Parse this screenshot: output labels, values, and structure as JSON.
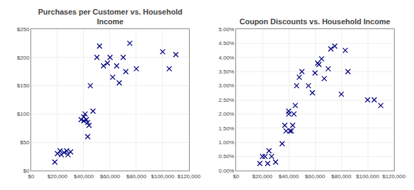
{
  "chart_data": [
    {
      "type": "scatter",
      "title": "Purchases per Customer vs. Household\nIncome",
      "x": [
        18000,
        20000,
        22000,
        23000,
        25000,
        27000,
        28000,
        30000,
        38000,
        40000,
        40000,
        41000,
        42000,
        43000,
        43000,
        44000,
        45000,
        47000,
        50000,
        52000,
        55000,
        58000,
        60000,
        62000,
        65000,
        67000,
        70000,
        72000,
        75000,
        80000,
        100000,
        105000,
        110000
      ],
      "values": [
        15,
        30,
        35,
        28,
        32,
        35,
        28,
        33,
        90,
        88,
        95,
        100,
        90,
        85,
        60,
        80,
        150,
        105,
        200,
        220,
        185,
        190,
        200,
        165,
        185,
        155,
        200,
        175,
        225,
        180,
        210,
        180,
        205
      ],
      "xlim": [
        0,
        120000
      ],
      "ylim": [
        0,
        250
      ],
      "xticks": [
        {
          "value": 0,
          "label": "$0"
        },
        {
          "value": 20000,
          "label": "$20,000"
        },
        {
          "value": 40000,
          "label": "$40,000"
        },
        {
          "value": 60000,
          "label": "$60,000"
        },
        {
          "value": 80000,
          "label": "$80,000"
        },
        {
          "value": 100000,
          "label": "$100,000"
        },
        {
          "value": 120000,
          "label": "$120,000"
        }
      ],
      "yticks": [
        {
          "value": 0,
          "label": "$0"
        },
        {
          "value": 50,
          "label": "$50"
        },
        {
          "value": 100,
          "label": "$100"
        },
        {
          "value": 150,
          "label": "$150"
        },
        {
          "value": 200,
          "label": "$200"
        },
        {
          "value": 250,
          "label": "$250"
        }
      ],
      "color": "#000080",
      "marker": "x",
      "grid": true
    },
    {
      "type": "scatter",
      "title": "Coupon Discounts vs. Household Income",
      "x": [
        18000,
        20000,
        22000,
        24000,
        25000,
        27000,
        30000,
        35000,
        37000,
        38000,
        40000,
        40000,
        41000,
        42000,
        43000,
        44000,
        45000,
        46000,
        48000,
        50000,
        55000,
        58000,
        60000,
        62000,
        63000,
        65000,
        67000,
        70000,
        72000,
        75000,
        80000,
        83000,
        85000,
        100000,
        105000,
        110000
      ],
      "values": [
        0.0025,
        0.005,
        0.005,
        0.0025,
        0.007,
        0.005,
        0.003,
        0.0095,
        0.016,
        0.014,
        0.02,
        0.021,
        0.014,
        0.014,
        0.016,
        0.02,
        0.023,
        0.03,
        0.033,
        0.035,
        0.03,
        0.0275,
        0.0345,
        0.038,
        0.0375,
        0.0395,
        0.0325,
        0.036,
        0.043,
        0.044,
        0.027,
        0.0425,
        0.035,
        0.025,
        0.025,
        0.023
      ],
      "xlim": [
        0,
        120000
      ],
      "ylim": [
        0,
        0.05
      ],
      "xticks": [
        {
          "value": 0,
          "label": "$0"
        },
        {
          "value": 20000,
          "label": "$20,000"
        },
        {
          "value": 40000,
          "label": "$40,000"
        },
        {
          "value": 60000,
          "label": "$60,000"
        },
        {
          "value": 80000,
          "label": "$80,000"
        },
        {
          "value": 100000,
          "label": "$100,000"
        },
        {
          "value": 120000,
          "label": "$120,000"
        }
      ],
      "yticks": [
        {
          "value": 0.0,
          "label": "0.00%"
        },
        {
          "value": 0.005,
          "label": "0.50%"
        },
        {
          "value": 0.01,
          "label": "1.00%"
        },
        {
          "value": 0.015,
          "label": "1.50%"
        },
        {
          "value": 0.02,
          "label": "2.00%"
        },
        {
          "value": 0.025,
          "label": "2.50%"
        },
        {
          "value": 0.03,
          "label": "3.00%"
        },
        {
          "value": 0.035,
          "label": "3.50%"
        },
        {
          "value": 0.04,
          "label": "4.00%"
        },
        {
          "value": 0.045,
          "label": "4.50%"
        },
        {
          "value": 0.05,
          "label": "5.00%"
        }
      ],
      "color": "#000080",
      "marker": "x",
      "grid": true
    }
  ]
}
